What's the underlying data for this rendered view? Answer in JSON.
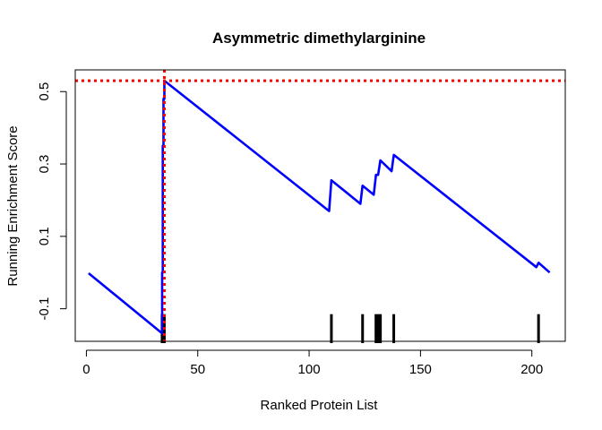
{
  "chart_data": {
    "type": "line",
    "title": "Asymmetric dimethylarginine",
    "xlabel": "Ranked Protein List",
    "ylabel": "Running Enrichment Score",
    "xlim": [
      -5,
      215
    ],
    "ylim": [
      -0.19,
      0.56
    ],
    "x_ticks": [
      {
        "value": 0,
        "label": "0"
      },
      {
        "value": 50,
        "label": "50"
      },
      {
        "value": 100,
        "label": "100"
      },
      {
        "value": 150,
        "label": "150"
      },
      {
        "value": 200,
        "label": "200"
      }
    ],
    "y_ticks": [
      {
        "value": -0.1,
        "label": "-0.1"
      },
      {
        "value": 0.1,
        "label": "0.1"
      },
      {
        "value": 0.3,
        "label": "0.3"
      },
      {
        "value": 0.5,
        "label": "0.5"
      }
    ],
    "series": [
      {
        "color": "#0000ff",
        "x": [
          1,
          34,
          34,
          34.3,
          34.3,
          34.6,
          34.6,
          35,
          35,
          109,
          110,
          123,
          124,
          129,
          130,
          131,
          132,
          137,
          138,
          202,
          203,
          208
        ],
        "y": [
          -0.002,
          -0.168,
          0.0,
          0.0,
          0.35,
          0.35,
          0.48,
          0.48,
          0.53,
          0.17,
          0.255,
          0.19,
          0.24,
          0.215,
          0.27,
          0.27,
          0.31,
          0.28,
          0.325,
          0.015,
          0.027,
          0.0
        ]
      }
    ],
    "hits": [
      34,
      35,
      110,
      124,
      130,
      131,
      132,
      138,
      203
    ],
    "hit_color": "#000000",
    "max_score": 0.53,
    "max_rank": 35,
    "ref_line_color": "#ff0000"
  }
}
